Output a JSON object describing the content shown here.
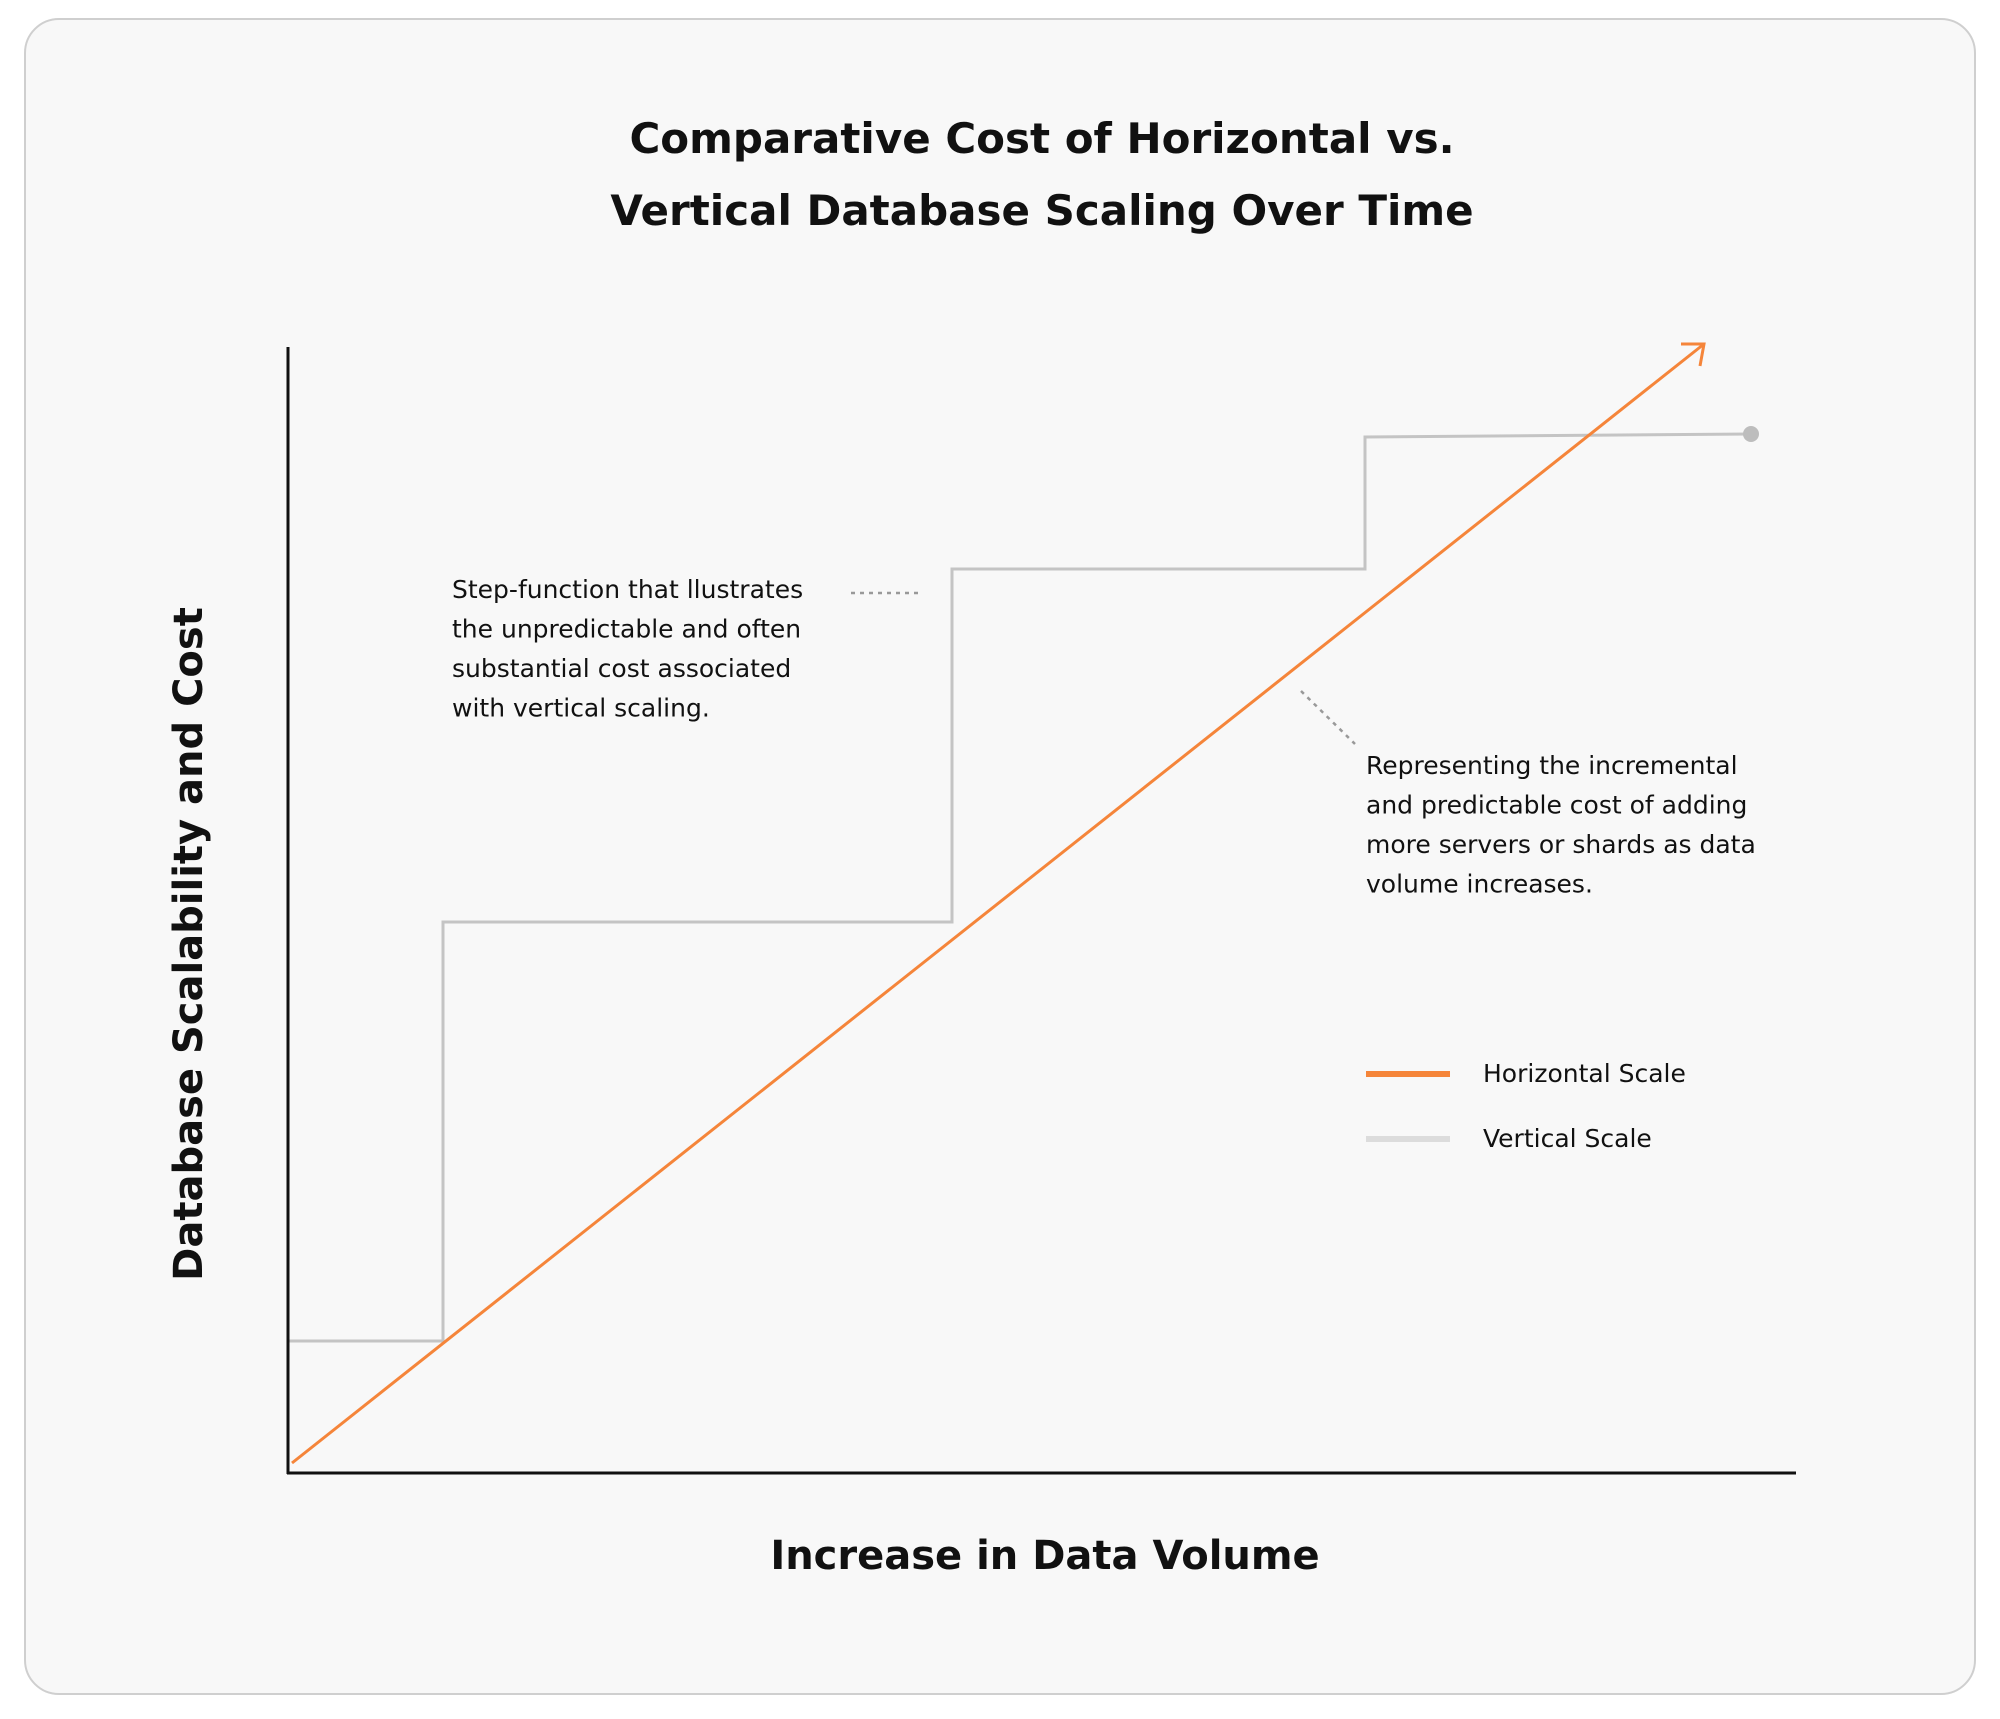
{
  "title": {
    "lines": [
      "Comparative Cost of Horizontal vs.",
      "Vertical Database Scaling Over Time"
    ]
  },
  "axes": {
    "y_label": "Database Scalability and Cost",
    "x_label": "Increase in Data Volume"
  },
  "annotations": [
    {
      "lines": [
        "Step-function that llustrates",
        "the unpredictable and often",
        "substantial cost associated",
        "with vertical scaling."
      ]
    },
    {
      "lines": [
        "Representing the incremental",
        "and predictable cost of adding",
        "more servers or shards as data",
        "volume increases."
      ]
    }
  ],
  "legend": [
    "Horizontal Scale",
    "Vertical Scale"
  ]
}
